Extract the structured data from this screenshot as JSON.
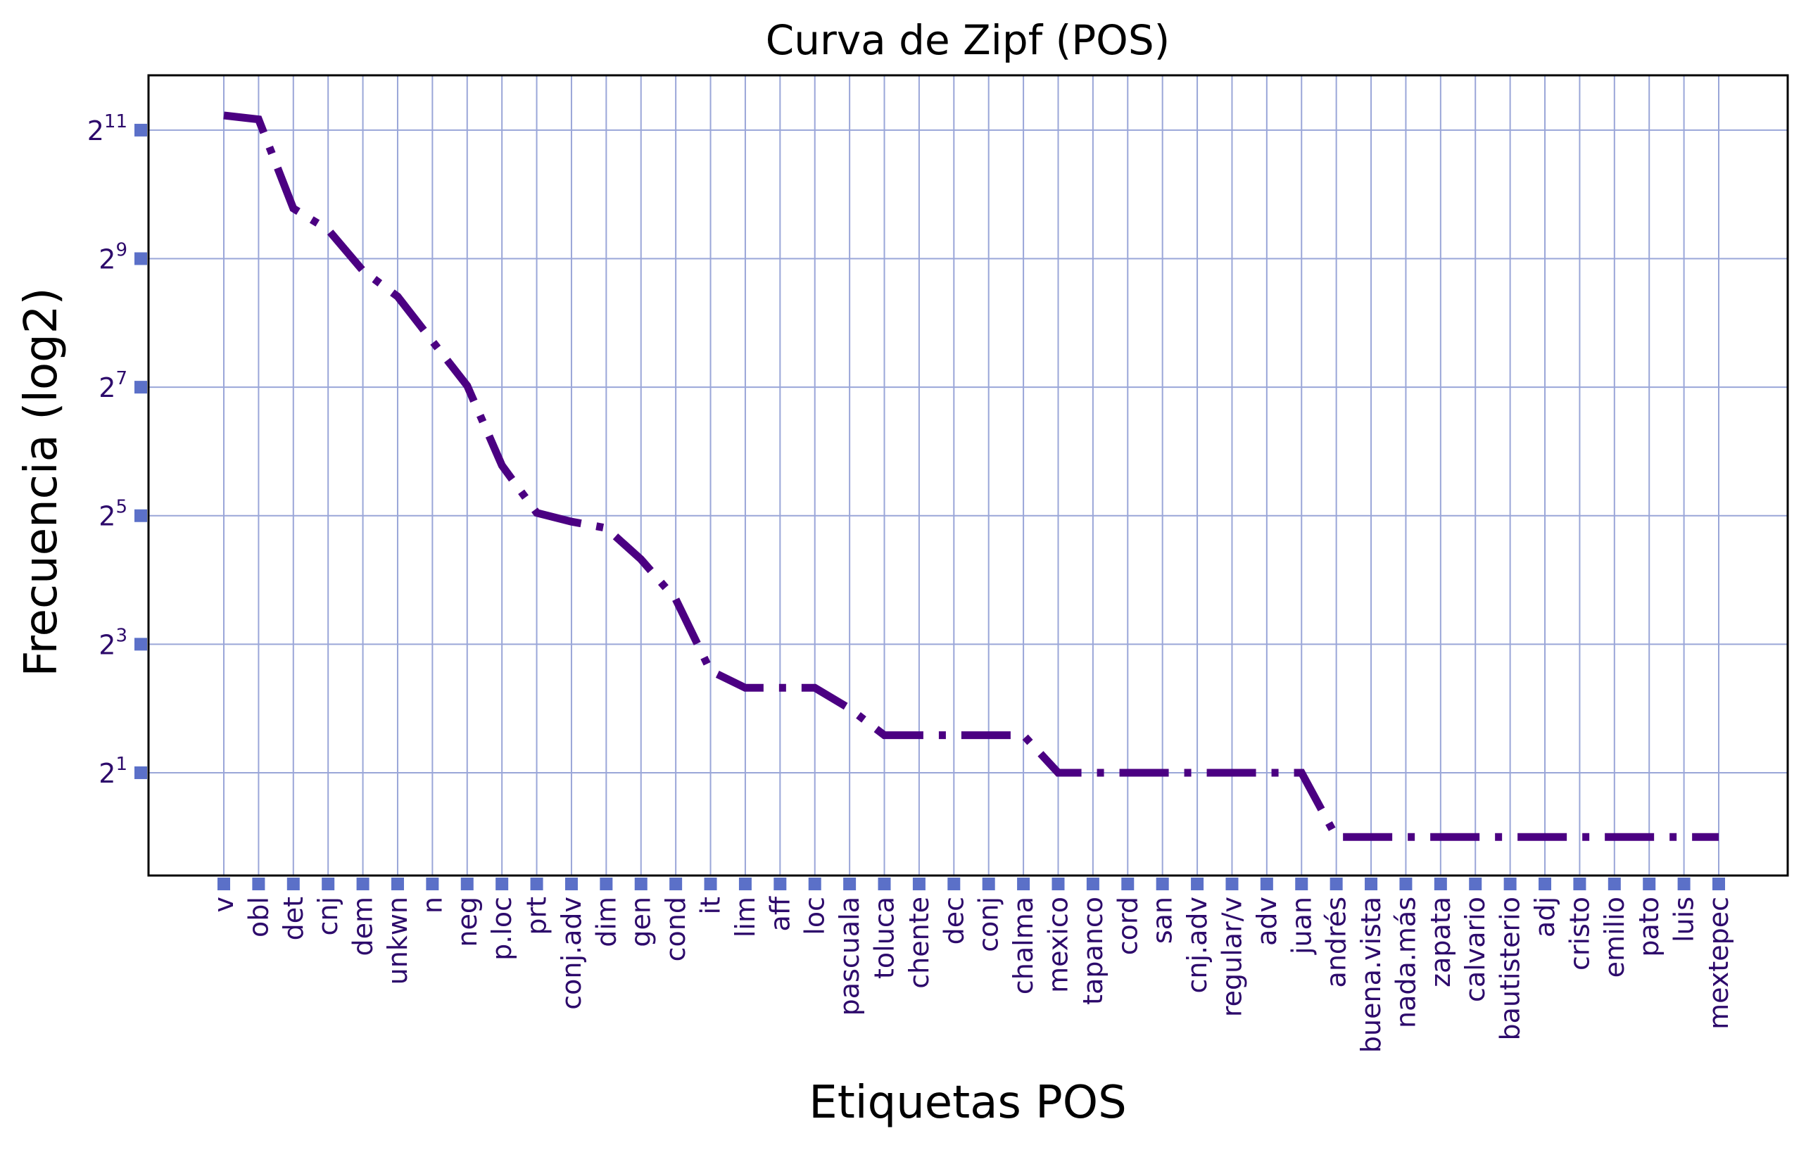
{
  "chart_data": {
    "type": "line",
    "title": "Curva de Zipf (POS)",
    "xlabel": "Etiquetas POS",
    "ylabel": "Frecuencia (log2)",
    "y_scale": "log2",
    "ylim": [
      0.66,
      3700
    ],
    "grid": true,
    "legend": "none",
    "categories": [
      "v",
      "obl",
      "det",
      "cnj",
      "dem",
      "unkwn",
      "n",
      "neg",
      "p.loc",
      "prt",
      "conj.adv",
      "dim",
      "gen",
      "cond",
      "it",
      "lim",
      "aff",
      "loc",
      "pascuala",
      "toluca",
      "chente",
      "dec",
      "conj",
      "chalma",
      "mexico",
      "tapanco",
      "cord",
      "san",
      "cnj.adv",
      "regular/v",
      "adv",
      "juan",
      "andrés",
      "buena.vista",
      "nada.más",
      "zapata",
      "calvario",
      "bautisterio",
      "adj",
      "cristo",
      "emilio",
      "pato",
      "luis",
      "mextepec"
    ],
    "series": [
      {
        "values": [
          2400,
          2300,
          880,
          700,
          450,
          340,
          210,
          130,
          55,
          33,
          30,
          28,
          20,
          13,
          6,
          5,
          5,
          5,
          4,
          3,
          3,
          3,
          3,
          3,
          2,
          2,
          2,
          2,
          2,
          2,
          2,
          2,
          1,
          1,
          1,
          1,
          1,
          1,
          1,
          1,
          1,
          1,
          1,
          1
        ],
        "line_style": "dash-dot"
      }
    ],
    "yticks": [
      {
        "base": "2",
        "exp": "1",
        "value": 2
      },
      {
        "base": "2",
        "exp": "3",
        "value": 8
      },
      {
        "base": "2",
        "exp": "5",
        "value": 32
      },
      {
        "base": "2",
        "exp": "7",
        "value": 128
      },
      {
        "base": "2",
        "exp": "9",
        "value": 512
      },
      {
        "base": "2",
        "exp": "11",
        "value": 2048
      }
    ],
    "colors": {
      "line": "#4b0082",
      "grid": "#9aa6d8",
      "tick_marker": "#5b70c8",
      "tick_text": "#2d0a6b",
      "axes": "#000000"
    }
  }
}
